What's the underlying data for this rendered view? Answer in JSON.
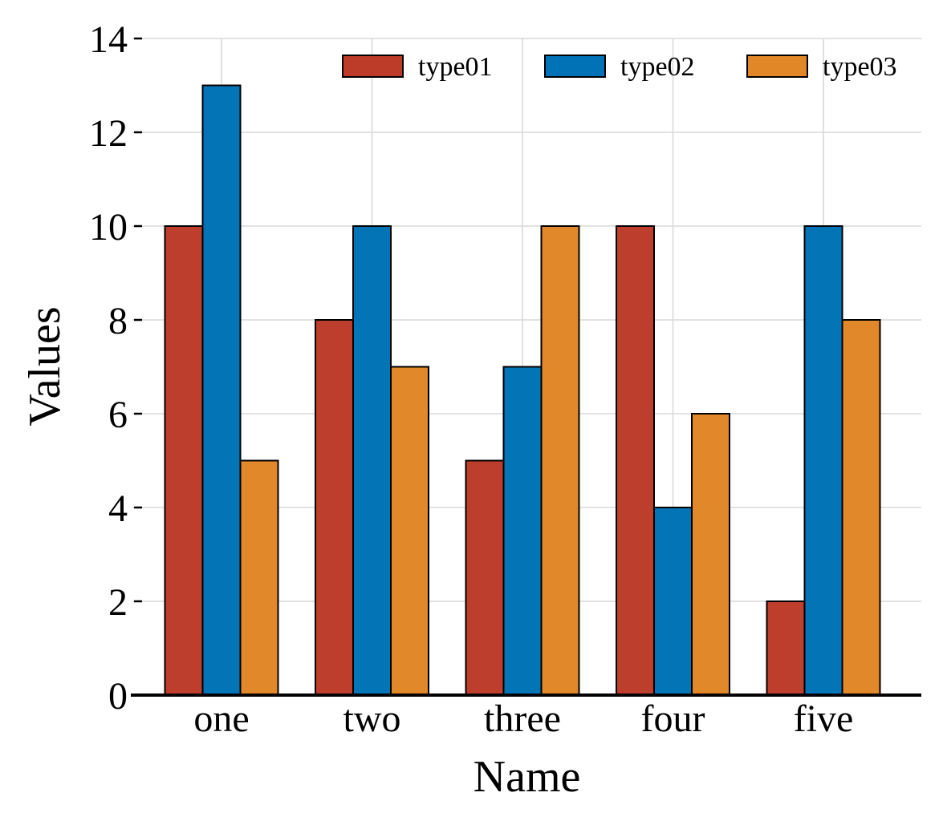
{
  "chart_data": {
    "type": "bar",
    "title": "",
    "xlabel": "Name",
    "ylabel": "Values",
    "categories": [
      "one",
      "two",
      "three",
      "four",
      "five"
    ],
    "series": [
      {
        "name": "type01",
        "color": "#bc3c29",
        "values": [
          10,
          8,
          5,
          10,
          2
        ]
      },
      {
        "name": "type02",
        "color": "#0072b5",
        "values": [
          13,
          10,
          7,
          4,
          10
        ]
      },
      {
        "name": "type03",
        "color": "#e18727",
        "values": [
          5,
          7,
          10,
          6,
          8
        ]
      }
    ],
    "ylim": [
      0,
      14
    ],
    "yticks": [
      "0",
      "2",
      "4",
      "6",
      "8",
      "10",
      "12",
      "14"
    ],
    "grid": true,
    "legend_position": "top-right",
    "legend_columns": 3
  }
}
